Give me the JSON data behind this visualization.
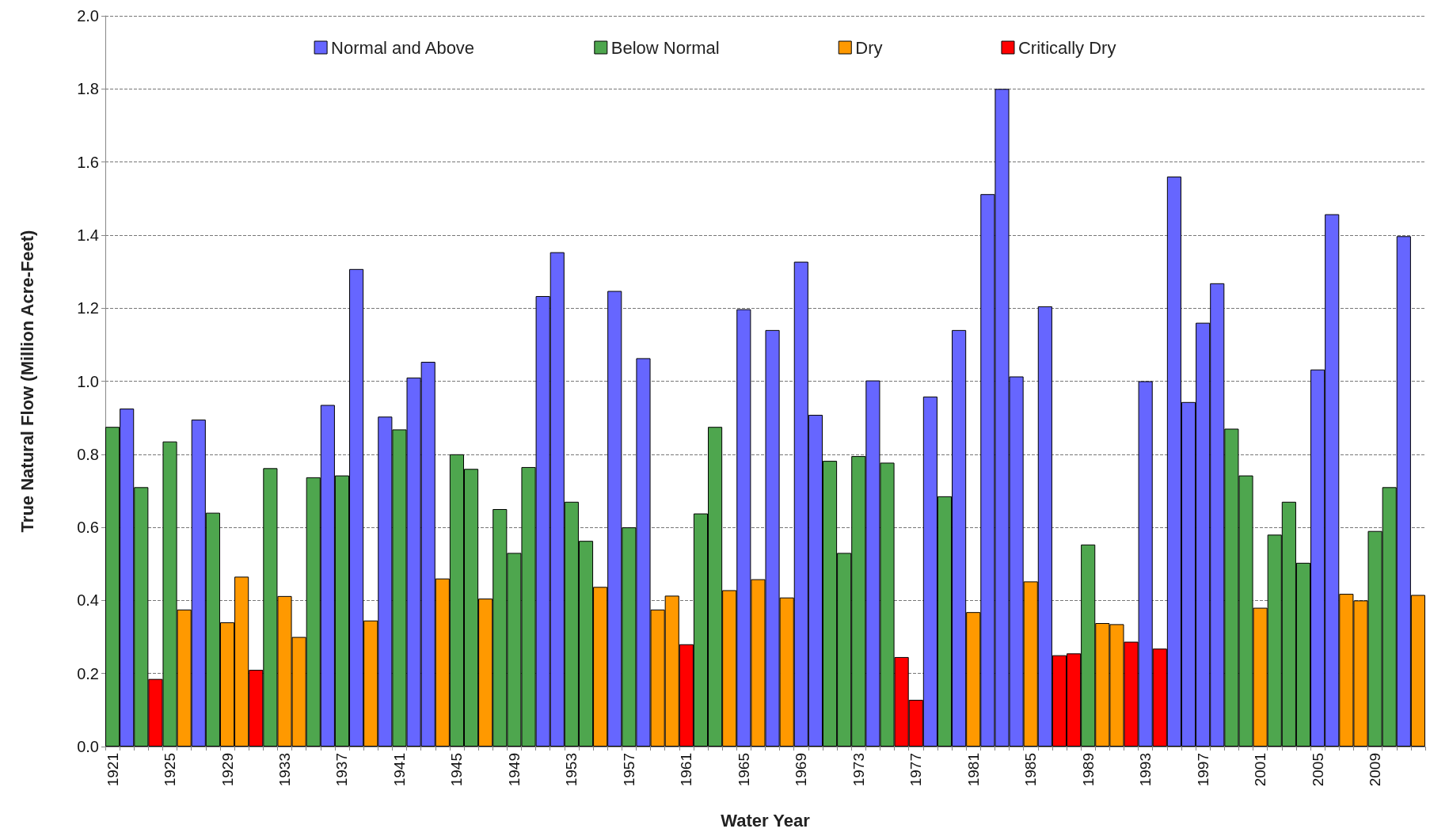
{
  "chart_data": {
    "type": "bar",
    "xlabel": "Water Year",
    "ylabel": "True Natural Flow (Million Acre-Feet)",
    "categories": [
      "1921",
      null,
      null,
      null,
      "1925",
      null,
      null,
      null,
      "1929",
      null,
      null,
      null,
      "1933",
      null,
      null,
      null,
      "1937",
      null,
      null,
      null,
      "1941",
      null,
      null,
      null,
      "1945",
      null,
      null,
      null,
      "1949",
      null,
      null,
      null,
      "1953",
      null,
      null,
      null,
      "1957",
      null,
      null,
      null,
      "1961",
      null,
      null,
      null,
      "1965",
      null,
      null,
      null,
      "1969",
      null,
      null,
      null,
      "1973",
      null,
      null,
      null,
      "1977",
      null,
      null,
      null,
      "1981",
      null,
      null,
      null,
      "1985",
      null,
      null,
      null,
      "1989",
      null,
      null,
      null,
      "1993",
      null,
      null,
      null,
      "1997",
      null,
      null,
      null,
      "2001",
      null,
      null,
      null,
      "2005",
      null,
      null,
      null,
      "2009",
      null,
      null,
      null
    ],
    "series": [
      {
        "name": "Normal and Above",
        "color": "#6666ff",
        "values": [
          null,
          0.925,
          null,
          null,
          null,
          null,
          0.895,
          null,
          null,
          null,
          null,
          null,
          null,
          null,
          null,
          0.935,
          null,
          1.307,
          null,
          0.903,
          null,
          1.01,
          1.053,
          null,
          null,
          null,
          null,
          null,
          null,
          null,
          1.233,
          1.353,
          null,
          null,
          null,
          1.247,
          null,
          1.063,
          null,
          null,
          null,
          null,
          null,
          null,
          1.197,
          null,
          1.14,
          null,
          1.327,
          0.908,
          null,
          null,
          null,
          1.002,
          null,
          null,
          null,
          0.958,
          null,
          1.14,
          null,
          1.512,
          1.8,
          1.013,
          null,
          1.205,
          null,
          null,
          null,
          null,
          null,
          null,
          1.0,
          null,
          1.56,
          0.943,
          1.16,
          1.268,
          null,
          null,
          null,
          null,
          null,
          null,
          1.032,
          1.457,
          null,
          null,
          null,
          null,
          1.397,
          null
        ]
      },
      {
        "name": "Below Normal",
        "color": "#4ea64e",
        "values": [
          0.875,
          null,
          0.71,
          null,
          0.835,
          null,
          null,
          0.64,
          null,
          null,
          null,
          0.762,
          null,
          null,
          0.737,
          null,
          0.742,
          null,
          null,
          null,
          0.868,
          null,
          null,
          null,
          0.8,
          0.76,
          null,
          0.65,
          0.53,
          0.765,
          null,
          null,
          0.67,
          0.563,
          null,
          null,
          0.6,
          null,
          null,
          null,
          null,
          0.638,
          0.875,
          null,
          null,
          null,
          null,
          null,
          null,
          null,
          0.782,
          0.53,
          0.795,
          null,
          0.777,
          null,
          null,
          null,
          0.685,
          null,
          null,
          null,
          null,
          null,
          null,
          null,
          null,
          null,
          0.553,
          null,
          null,
          null,
          null,
          null,
          null,
          null,
          null,
          null,
          0.87,
          0.742,
          null,
          0.58,
          0.67,
          0.503,
          null,
          null,
          null,
          null,
          0.59,
          0.71,
          null,
          null
        ]
      },
      {
        "name": "Dry",
        "color": "#ff9900",
        "values": [
          null,
          null,
          null,
          null,
          null,
          0.375,
          null,
          null,
          0.34,
          0.465,
          null,
          null,
          0.412,
          0.3,
          null,
          null,
          null,
          null,
          0.345,
          null,
          null,
          null,
          null,
          0.46,
          null,
          null,
          0.405,
          null,
          null,
          null,
          null,
          null,
          null,
          null,
          0.437,
          null,
          null,
          null,
          0.375,
          0.413,
          null,
          null,
          null,
          0.428,
          null,
          0.458,
          null,
          0.408,
          null,
          null,
          null,
          null,
          null,
          null,
          null,
          null,
          null,
          null,
          null,
          null,
          0.368,
          null,
          null,
          null,
          0.452,
          null,
          null,
          null,
          null,
          0.338,
          0.335,
          null,
          null,
          null,
          null,
          null,
          null,
          null,
          null,
          null,
          0.38,
          null,
          null,
          null,
          null,
          null,
          0.418,
          0.4,
          null,
          null,
          null,
          0.415
        ]
      },
      {
        "name": "Critically Dry",
        "color": "#ff0000",
        "values": [
          null,
          null,
          null,
          0.185,
          null,
          null,
          null,
          null,
          null,
          null,
          0.21,
          null,
          null,
          null,
          null,
          null,
          null,
          null,
          null,
          null,
          null,
          null,
          null,
          null,
          null,
          null,
          null,
          null,
          null,
          null,
          null,
          null,
          null,
          null,
          null,
          null,
          null,
          null,
          null,
          null,
          0.28,
          null,
          null,
          null,
          null,
          null,
          null,
          null,
          null,
          null,
          null,
          null,
          null,
          null,
          null,
          0.245,
          0.128,
          null,
          null,
          null,
          null,
          null,
          null,
          null,
          null,
          null,
          0.25,
          0.255,
          null,
          null,
          null,
          0.287,
          null,
          0.268,
          null,
          null,
          null,
          null,
          null,
          null,
          null,
          null,
          null,
          null,
          null,
          null,
          null,
          null,
          null,
          null,
          null,
          null
        ]
      }
    ],
    "ylim": [
      0,
      2
    ],
    "yticks": [
      {
        "value": 0,
        "label": "0.0"
      },
      {
        "value": 0.2,
        "label": "0.2"
      },
      {
        "value": 0.4,
        "label": "0.4"
      },
      {
        "value": 0.6,
        "label": "0.6"
      },
      {
        "value": 0.8,
        "label": "0.8"
      },
      {
        "value": 1,
        "label": "1.0"
      },
      {
        "value": 1.2,
        "label": "1.2"
      },
      {
        "value": 1.4,
        "label": "1.4"
      },
      {
        "value": 1.6,
        "label": "1.6"
      },
      {
        "value": 1.8,
        "label": "1.8"
      },
      {
        "value": 2,
        "label": "2.0"
      }
    ],
    "grid": "y",
    "legend": "top"
  }
}
